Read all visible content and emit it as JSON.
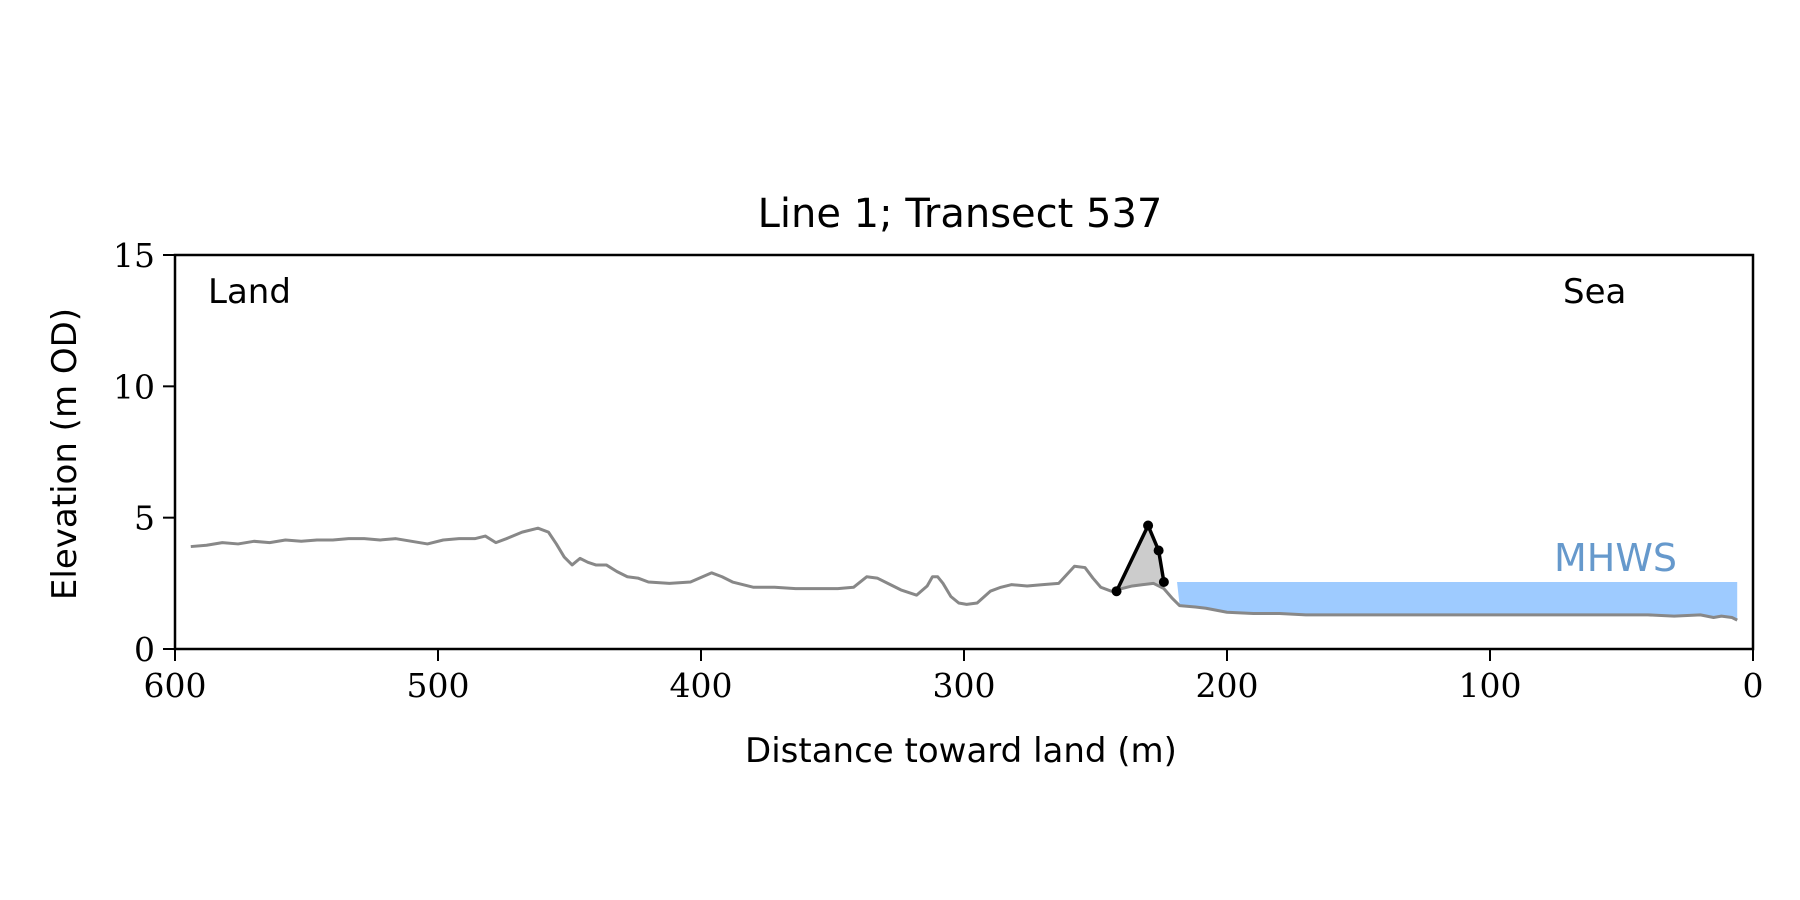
{
  "chart_data": {
    "type": "line",
    "title": "Line 1; Transect 537",
    "xlabel": "Distance toward land (m)",
    "ylabel": "Elevation (m OD)",
    "xlim": [
      600,
      0
    ],
    "ylim": [
      0,
      15
    ],
    "xticks": [
      600,
      500,
      400,
      300,
      200,
      100,
      0
    ],
    "yticks": [
      0,
      5,
      10,
      15
    ],
    "grid": false,
    "annotations": {
      "left": "Land",
      "right": "Sea",
      "water_label": "MHWS"
    },
    "colors": {
      "profile": "#888888",
      "dune": "#000000",
      "dune_fill": "#cccccc",
      "water": "#9ecbff",
      "mhws_text": "#6699cc"
    },
    "mhws": {
      "level": 2.55,
      "x_from": 219,
      "x_to": 6
    },
    "profile": {
      "x": [
        594,
        588,
        582,
        576,
        570,
        564,
        558,
        552,
        546,
        540,
        534,
        528,
        522,
        516,
        510,
        504,
        498,
        492,
        486,
        482,
        478,
        474,
        468,
        462,
        458,
        455,
        452,
        449,
        446,
        443,
        440,
        436,
        432,
        428,
        424,
        420,
        412,
        404,
        396,
        392,
        388,
        380,
        372,
        364,
        356,
        348,
        342,
        337,
        333,
        328,
        324,
        318,
        314,
        312,
        310,
        308,
        305,
        302,
        299,
        295,
        290,
        286,
        282,
        276,
        270,
        264,
        258,
        254,
        251,
        248,
        244,
        240,
        236,
        232,
        228,
        224,
        221,
        218,
        212,
        208,
        200,
        190,
        180,
        170,
        160,
        150,
        140,
        130,
        120,
        110,
        100,
        90,
        80,
        70,
        60,
        50,
        40,
        30,
        20,
        15,
        12,
        8,
        6
      ],
      "y": [
        3.9,
        3.95,
        4.05,
        4.0,
        4.1,
        4.05,
        4.15,
        4.1,
        4.15,
        4.15,
        4.2,
        4.2,
        4.15,
        4.2,
        4.1,
        4.0,
        4.15,
        4.2,
        4.2,
        4.3,
        4.05,
        4.2,
        4.45,
        4.6,
        4.45,
        4.0,
        3.5,
        3.2,
        3.45,
        3.3,
        3.2,
        3.2,
        2.95,
        2.75,
        2.7,
        2.55,
        2.5,
        2.55,
        2.9,
        2.75,
        2.55,
        2.35,
        2.35,
        2.3,
        2.3,
        2.3,
        2.35,
        2.75,
        2.7,
        2.45,
        2.25,
        2.05,
        2.4,
        2.75,
        2.75,
        2.5,
        2.0,
        1.75,
        1.7,
        1.75,
        2.2,
        2.35,
        2.45,
        2.4,
        2.45,
        2.5,
        3.15,
        3.1,
        2.7,
        2.35,
        2.2,
        2.3,
        2.4,
        2.45,
        2.5,
        2.3,
        1.95,
        1.65,
        1.6,
        1.55,
        1.4,
        1.35,
        1.35,
        1.3,
        1.3,
        1.3,
        1.3,
        1.3,
        1.3,
        1.3,
        1.3,
        1.3,
        1.3,
        1.3,
        1.3,
        1.3,
        1.3,
        1.25,
        1.3,
        1.2,
        1.25,
        1.2,
        1.1
      ]
    },
    "dune_points": {
      "x": [
        242,
        230,
        226,
        224
      ],
      "y": [
        2.2,
        4.7,
        3.75,
        2.55
      ]
    }
  }
}
